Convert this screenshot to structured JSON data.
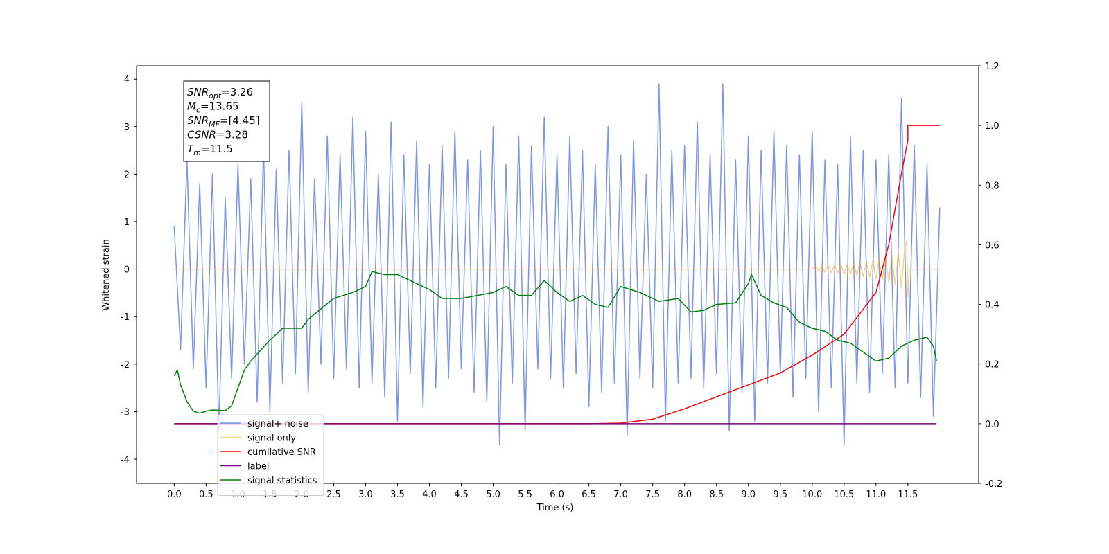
{
  "chart_data": {
    "type": "line",
    "xlabel": "Time (s)",
    "ylabel": "Whitened strain",
    "xlim": [
      -0.59,
      12.61
    ],
    "ylim": [
      -4.51,
      4.28
    ],
    "y2lim": [
      -0.2,
      1.2
    ],
    "xticks": [
      {
        "value": 0,
        "label": "0.0"
      },
      0.5,
      {
        "value": 1,
        "label": "1.0"
      },
      1.5,
      {
        "value": 2,
        "label": "2.0"
      },
      2.5,
      {
        "value": 3,
        "label": "3.0"
      },
      3.5,
      {
        "value": 4,
        "label": "4.0"
      },
      4.5,
      {
        "value": 5,
        "label": "5.0"
      },
      5.5,
      {
        "value": 6,
        "label": "6.0"
      },
      6.5,
      {
        "value": 7,
        "label": "7.0"
      },
      7.5,
      {
        "value": 8,
        "label": "8.0"
      },
      8.5,
      {
        "value": 9,
        "label": "9.0"
      },
      9.5,
      {
        "value": 10,
        "label": "10.0"
      },
      10.5,
      {
        "value": 11,
        "label": "11.0"
      },
      11.5
    ],
    "yticks": [
      -4,
      -3,
      -2,
      -1,
      0,
      1,
      2,
      3,
      4
    ],
    "y2ticks": [
      -0.2,
      {
        "value": 0,
        "label": "0.0"
      },
      0.2,
      0.4,
      0.6,
      0.8,
      {
        "value": 1,
        "label": "1.0"
      },
      1.2
    ],
    "grid": false,
    "legend": "lower left",
    "annotations": [
      {
        "name": "SNR",
        "subscript": "opt",
        "text": "=3.26"
      },
      {
        "name": "M",
        "subscript": "c",
        "text": "=13.65"
      },
      {
        "name": "SNR",
        "subscript": "MF",
        "text": "=[4.45]"
      },
      {
        "name": "CSNR",
        "subscript": "",
        "text": "=3.28"
      },
      {
        "name": "T",
        "subscript": "m",
        "text": "=11.5"
      }
    ],
    "series": [
      {
        "name": "signal+ noise",
        "color": "#4169e1",
        "alpha": 0.7,
        "x": [
          0.0,
          0.1,
          0.2,
          0.3,
          0.4,
          0.5,
          0.6,
          0.7,
          0.8,
          0.9,
          1.0,
          1.1,
          1.2,
          1.3,
          1.4,
          1.5,
          1.6,
          1.7,
          1.8,
          1.9,
          2.0,
          2.1,
          2.2,
          2.3,
          2.4,
          2.5,
          2.6,
          2.7,
          2.8,
          2.9,
          3.0,
          3.1,
          3.2,
          3.3,
          3.4,
          3.5,
          3.6,
          3.7,
          3.8,
          3.9,
          4.0,
          4.1,
          4.2,
          4.3,
          4.4,
          4.5,
          4.6,
          4.7,
          4.8,
          4.9,
          5.0,
          5.1,
          5.2,
          5.3,
          5.4,
          5.5,
          5.6,
          5.7,
          5.8,
          5.9,
          6.0,
          6.1,
          6.2,
          6.3,
          6.4,
          6.5,
          6.6,
          6.7,
          6.8,
          6.9,
          7.0,
          7.1,
          7.2,
          7.3,
          7.4,
          7.5,
          7.6,
          7.7,
          7.8,
          7.9,
          8.0,
          8.1,
          8.2,
          8.3,
          8.4,
          8.5,
          8.6,
          8.7,
          8.8,
          8.9,
          9.0,
          9.1,
          9.2,
          9.3,
          9.4,
          9.5,
          9.6,
          9.7,
          9.8,
          9.9,
          10.0,
          10.1,
          10.2,
          10.3,
          10.4,
          10.5,
          10.6,
          10.7,
          10.8,
          10.9,
          11.0,
          11.1,
          11.2,
          11.3,
          11.4,
          11.5,
          11.6,
          11.7,
          11.8,
          11.9,
          12.0
        ],
        "values": [
          0.9,
          -1.7,
          2.3,
          -2.1,
          1.8,
          -2.5,
          2.0,
          -3.4,
          1.5,
          -2.3,
          2.2,
          -2.0,
          1.9,
          -2.8,
          2.6,
          -3.0,
          2.1,
          -2.4,
          2.5,
          -2.2,
          3.5,
          -2.6,
          1.9,
          -2.0,
          2.8,
          -2.3,
          2.4,
          -2.1,
          3.2,
          -2.5,
          2.9,
          -2.4,
          2.0,
          -2.7,
          3.1,
          -3.2,
          2.4,
          -2.2,
          2.7,
          -2.9,
          2.2,
          -2.5,
          2.6,
          -2.3,
          2.9,
          -2.1,
          2.3,
          -2.6,
          2.5,
          -2.8,
          3.0,
          -3.7,
          2.2,
          -2.4,
          2.8,
          -3.4,
          2.6,
          -2.1,
          3.2,
          -2.3,
          2.4,
          -2.5,
          2.8,
          -2.2,
          2.5,
          -2.9,
          2.2,
          -2.6,
          3.0,
          -2.4,
          2.4,
          -3.5,
          2.7,
          -2.3,
          2.0,
          -2.5,
          3.9,
          -3.2,
          2.5,
          -2.4,
          2.6,
          -2.3,
          3.1,
          -2.5,
          2.4,
          -2.2,
          3.9,
          -3.4,
          2.3,
          -2.6,
          2.8,
          -3.2,
          2.5,
          -2.4,
          2.9,
          -2.2,
          2.6,
          -2.7,
          2.4,
          -2.3,
          2.9,
          -3.0,
          2.3,
          -2.5,
          2.2,
          -3.7,
          2.8,
          -2.4,
          2.5,
          -2.6,
          2.3,
          -2.2,
          2.4,
          -2.5,
          3.6,
          -2.4,
          2.6,
          -2.7,
          2.2,
          -3.1,
          1.3
        ]
      },
      {
        "name": "signal only",
        "color": "#ffa500",
        "alpha": 0.5,
        "x": [
          0,
          10,
          10.05,
          10.1,
          10.15,
          10.2,
          10.25,
          10.3,
          10.35,
          10.4,
          10.45,
          10.5,
          10.55,
          10.6,
          10.65,
          10.7,
          10.75,
          10.8,
          10.85,
          10.9,
          10.95,
          11.0,
          11.05,
          11.1,
          11.15,
          11.2,
          11.25,
          11.3,
          11.35,
          11.4,
          11.45,
          11.48,
          11.5,
          11.52,
          12.0
        ],
        "values": [
          0,
          0,
          0.05,
          -0.05,
          0.06,
          -0.06,
          0.07,
          -0.07,
          0.08,
          -0.08,
          0.09,
          -0.1,
          0.1,
          -0.11,
          0.12,
          -0.13,
          0.14,
          -0.15,
          0.16,
          -0.17,
          0.18,
          -0.2,
          0.21,
          -0.23,
          0.25,
          -0.27,
          0.3,
          -0.33,
          0.36,
          -0.4,
          0.45,
          0.6,
          -0.6,
          0,
          0
        ]
      },
      {
        "name": "cumilative SNR",
        "color": "#ff0000",
        "alpha": 1,
        "axis": "y2",
        "x": [
          0,
          6.5,
          7.0,
          7.5,
          8.0,
          8.5,
          9.0,
          9.5,
          10.0,
          10.5,
          11.0,
          11.2,
          11.4,
          11.5,
          11.5,
          12.0
        ],
        "values": [
          0,
          0,
          0.002,
          0.015,
          0.05,
          0.09,
          0.13,
          0.17,
          0.23,
          0.3,
          0.44,
          0.6,
          0.84,
          0.95,
          1.0,
          1.0
        ]
      },
      {
        "name": "label",
        "color": "#800080",
        "alpha": 1,
        "axis": "y2",
        "x": [
          0,
          11.95
        ],
        "values": [
          0,
          0
        ]
      },
      {
        "name": "signal statistics",
        "color": "#008000",
        "alpha": 1,
        "axis": "y2",
        "x": [
          0.0,
          0.05,
          0.1,
          0.2,
          0.3,
          0.4,
          0.5,
          0.6,
          0.8,
          0.9,
          1.0,
          1.1,
          1.2,
          1.5,
          1.7,
          2.0,
          2.1,
          2.5,
          2.8,
          3.0,
          3.1,
          3.3,
          3.5,
          3.8,
          4.0,
          4.2,
          4.5,
          5.0,
          5.2,
          5.4,
          5.6,
          5.8,
          6.0,
          6.2,
          6.4,
          6.6,
          6.8,
          7.0,
          7.3,
          7.6,
          7.9,
          8.1,
          8.3,
          8.5,
          8.8,
          9.0,
          9.05,
          9.2,
          9.4,
          9.6,
          9.8,
          10.0,
          10.2,
          10.4,
          10.6,
          10.8,
          11.0,
          11.2,
          11.4,
          11.6,
          11.8,
          11.9,
          11.95
        ],
        "values": [
          0.16,
          0.18,
          0.13,
          0.074,
          0.042,
          0.035,
          0.042,
          0.046,
          0.044,
          0.06,
          0.12,
          0.18,
          0.21,
          0.28,
          0.32,
          0.32,
          0.35,
          0.42,
          0.44,
          0.46,
          0.51,
          0.5,
          0.5,
          0.47,
          0.45,
          0.42,
          0.42,
          0.44,
          0.46,
          0.43,
          0.43,
          0.48,
          0.44,
          0.41,
          0.43,
          0.4,
          0.39,
          0.46,
          0.44,
          0.41,
          0.42,
          0.375,
          0.38,
          0.4,
          0.405,
          0.47,
          0.5,
          0.43,
          0.405,
          0.39,
          0.34,
          0.32,
          0.31,
          0.28,
          0.27,
          0.24,
          0.21,
          0.22,
          0.26,
          0.28,
          0.29,
          0.26,
          0.21
        ]
      }
    ]
  }
}
